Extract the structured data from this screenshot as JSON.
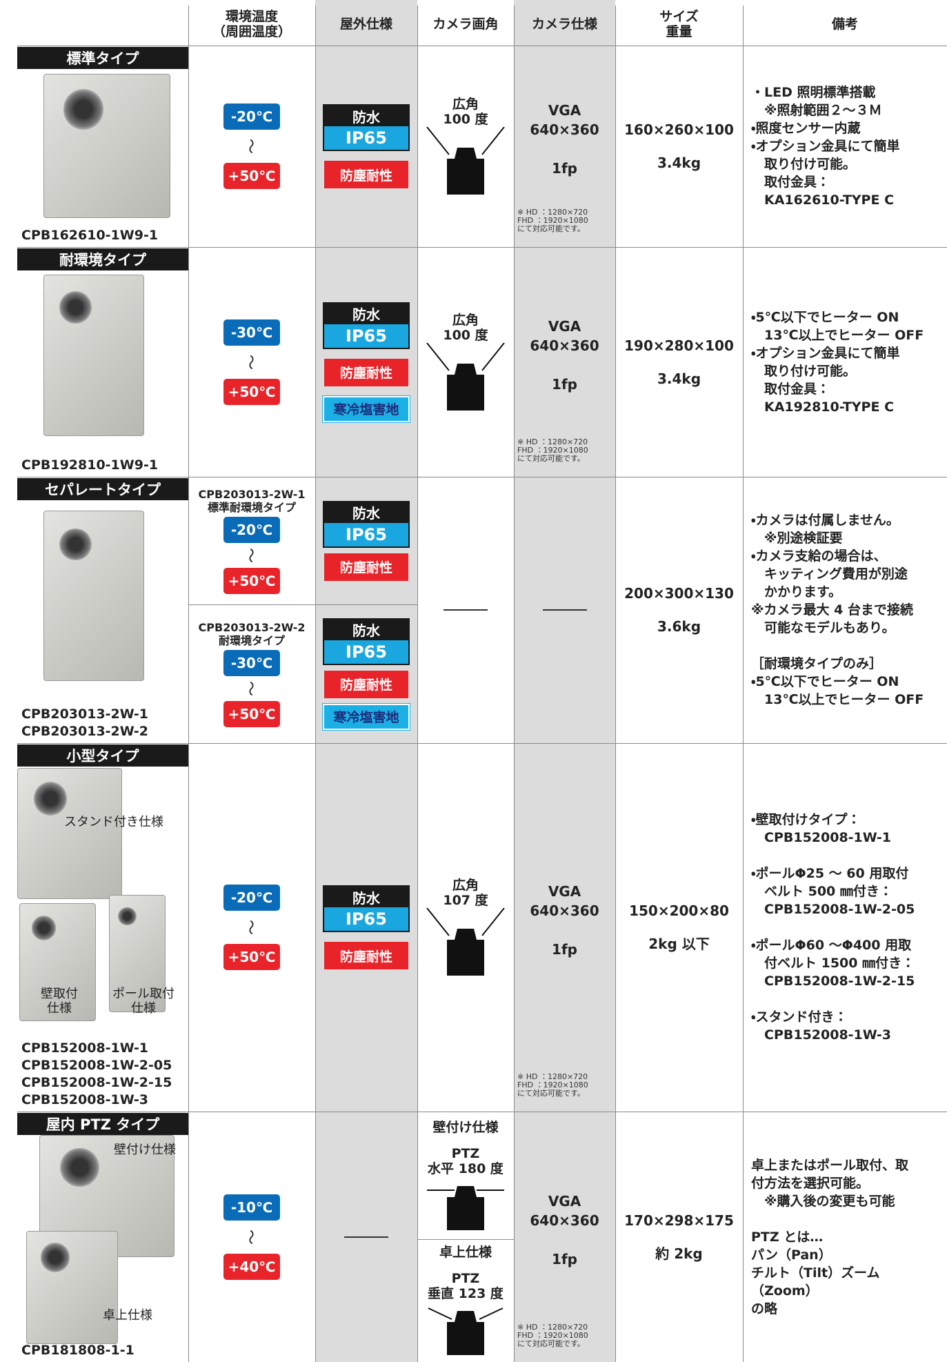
{
  "header": [
    "環境温度\n（周囲温度）",
    "屋外仕様",
    "カメラ画角",
    "カメラ仕様",
    "サイズ\n重量",
    "備考"
  ],
  "range_mark": "〜",
  "rows": [
    {
      "type": "標準タイプ",
      "models": "CPB162610-1W9-1",
      "image_labels": [],
      "variants": [
        {
          "low": "-20℃",
          "high": "+50℃",
          "outdoor": {
            "waterproof": "防水",
            "ip": "IP65",
            "extra": [
              "防塵耐性"
            ]
          }
        }
      ],
      "angle": [
        {
          "text": "広角\n100 度"
        }
      ],
      "spec": {
        "format": "VGA",
        "resolution": "640×360",
        "fps": "1fp",
        "note": "※ HD ：1280×720\nFHD ：1920×1080\nにて対応可能です。"
      },
      "size": "160×260×100",
      "weight": "3.4kg",
      "remarks": "・LED 照明標準搭載\n　※照射範囲２～３Ｍ\n・照度センサー内蔵\n・オプション金具にて簡単\n　取り付け可能。\n　取付金具：\n　KA162610-TYPE C"
    },
    {
      "type": "耐環境タイプ",
      "models": "CPB192810-1W9-1",
      "image_labels": [],
      "variants": [
        {
          "low": "-30℃",
          "high": "+50℃",
          "outdoor": {
            "waterproof": "防水",
            "ip": "IP65",
            "extra": [
              "防塵耐性",
              "寒冷塩害地"
            ]
          }
        }
      ],
      "angle": [
        {
          "text": "広角\n100 度"
        }
      ],
      "spec": {
        "format": "VGA",
        "resolution": "640×360",
        "fps": "1fp",
        "note": "※ HD ：1280×720\nFHD ：1920×1080\nにて対応可能です。"
      },
      "size": "190×280×100",
      "weight": "3.4kg",
      "remarks": "・5℃以下でヒーター ON\n　13℃以上でヒーター OFF\n・オプション金具にて簡単\n　取り付け可能。\n　取付金具：\n　KA192810-TYPE C"
    },
    {
      "type": "セパレートタイプ",
      "models": "CPB203013-2W-1\nCPB203013-2W-2",
      "image_labels": [],
      "variants": [
        {
          "header": "CPB203013-2W-1\n標準耐環境タイプ",
          "low": "-20℃",
          "high": "+50℃",
          "outdoor": {
            "waterproof": "防水",
            "ip": "IP65",
            "extra": [
              "防塵耐性"
            ]
          }
        },
        {
          "header": "CPB203013-2W-2\n耐環境タイプ",
          "low": "-30℃",
          "high": "+50℃",
          "outdoor": {
            "waterproof": "防水",
            "ip": "IP65",
            "extra": [
              "防塵耐性",
              "寒冷塩害地"
            ]
          }
        }
      ],
      "angle": null,
      "spec": null,
      "size": "200×300×130",
      "weight": "3.6kg",
      "remarks": "・カメラは付属しません。\n　※別途検証要\n・カメラ支給の場合は、\n　キッティング費用が別途\n　かかります。\n※カメラ最大 4 台まで接続\n　可能なモデルもあり。\n\n［耐環境タイプのみ］\n・5℃以下でヒーター ON\n　13℃以上でヒーター OFF"
    },
    {
      "type": "小型タイプ",
      "models": "CPB152008-1W-1\nCPB152008-1W-2-05\nCPB152008-1W-2-15\nCPB152008-1W-3",
      "image_labels": [
        "スタンド付き仕様",
        "壁取付\n仕様",
        "ポール取付\n仕様"
      ],
      "variants": [
        {
          "low": "-20℃",
          "high": "+50℃",
          "outdoor": {
            "waterproof": "防水",
            "ip": "IP65",
            "extra": [
              "防塵耐性"
            ]
          }
        }
      ],
      "angle": [
        {
          "text": "広角\n107 度"
        }
      ],
      "spec": {
        "format": "VGA",
        "resolution": "640×360",
        "fps": "1fp",
        "note": "※ HD ：1280×720\nFHD ：1920×1080\nにて対応可能です。"
      },
      "size": "150×200×80",
      "weight": "2kg 以下",
      "remarks": "・壁取付けタイプ：\n　CPB152008-1W-1\n\n・ポールΦ25 ～ 60 用取付\n　ベルト 500 ㎜付き：\n　CPB152008-1W-2-05\n\n・ポールΦ60 ～Φ400 用取\n　付ベルト 1500 ㎜付き：\n　CPB152008-1W-2-15\n\n・スタンド付き：\n　CPB152008-1W-3"
    },
    {
      "type": "屋内 PTZ タイプ",
      "models": "CPB181808-1-1",
      "image_labels": [
        "壁付け仕様",
        "卓上仕様"
      ],
      "variants": [
        {
          "low": "-10℃",
          "high": "+40℃",
          "outdoor": null
        }
      ],
      "angle": [
        {
          "label": "壁付け仕様",
          "text": "PTZ\n水平 180 度"
        },
        {
          "label": "卓上仕様",
          "text": "PTZ\n垂直 123 度"
        }
      ],
      "spec": {
        "format": "VGA",
        "resolution": "640×360",
        "fps": "1fp",
        "note": "※ HD ：1280×720\nFHD ：1920×1080\nにて対応可能です。"
      },
      "size": "170×298×175",
      "weight": "約 2kg",
      "remarks": "卓上またはポール取付、取\n付方法を選択可能。\n　※購入後の変更も可能\n\nPTZ とは…\nパン（Pan）\nチルト（Tilt）ズーム（Zoom）\nの略"
    }
  ]
}
